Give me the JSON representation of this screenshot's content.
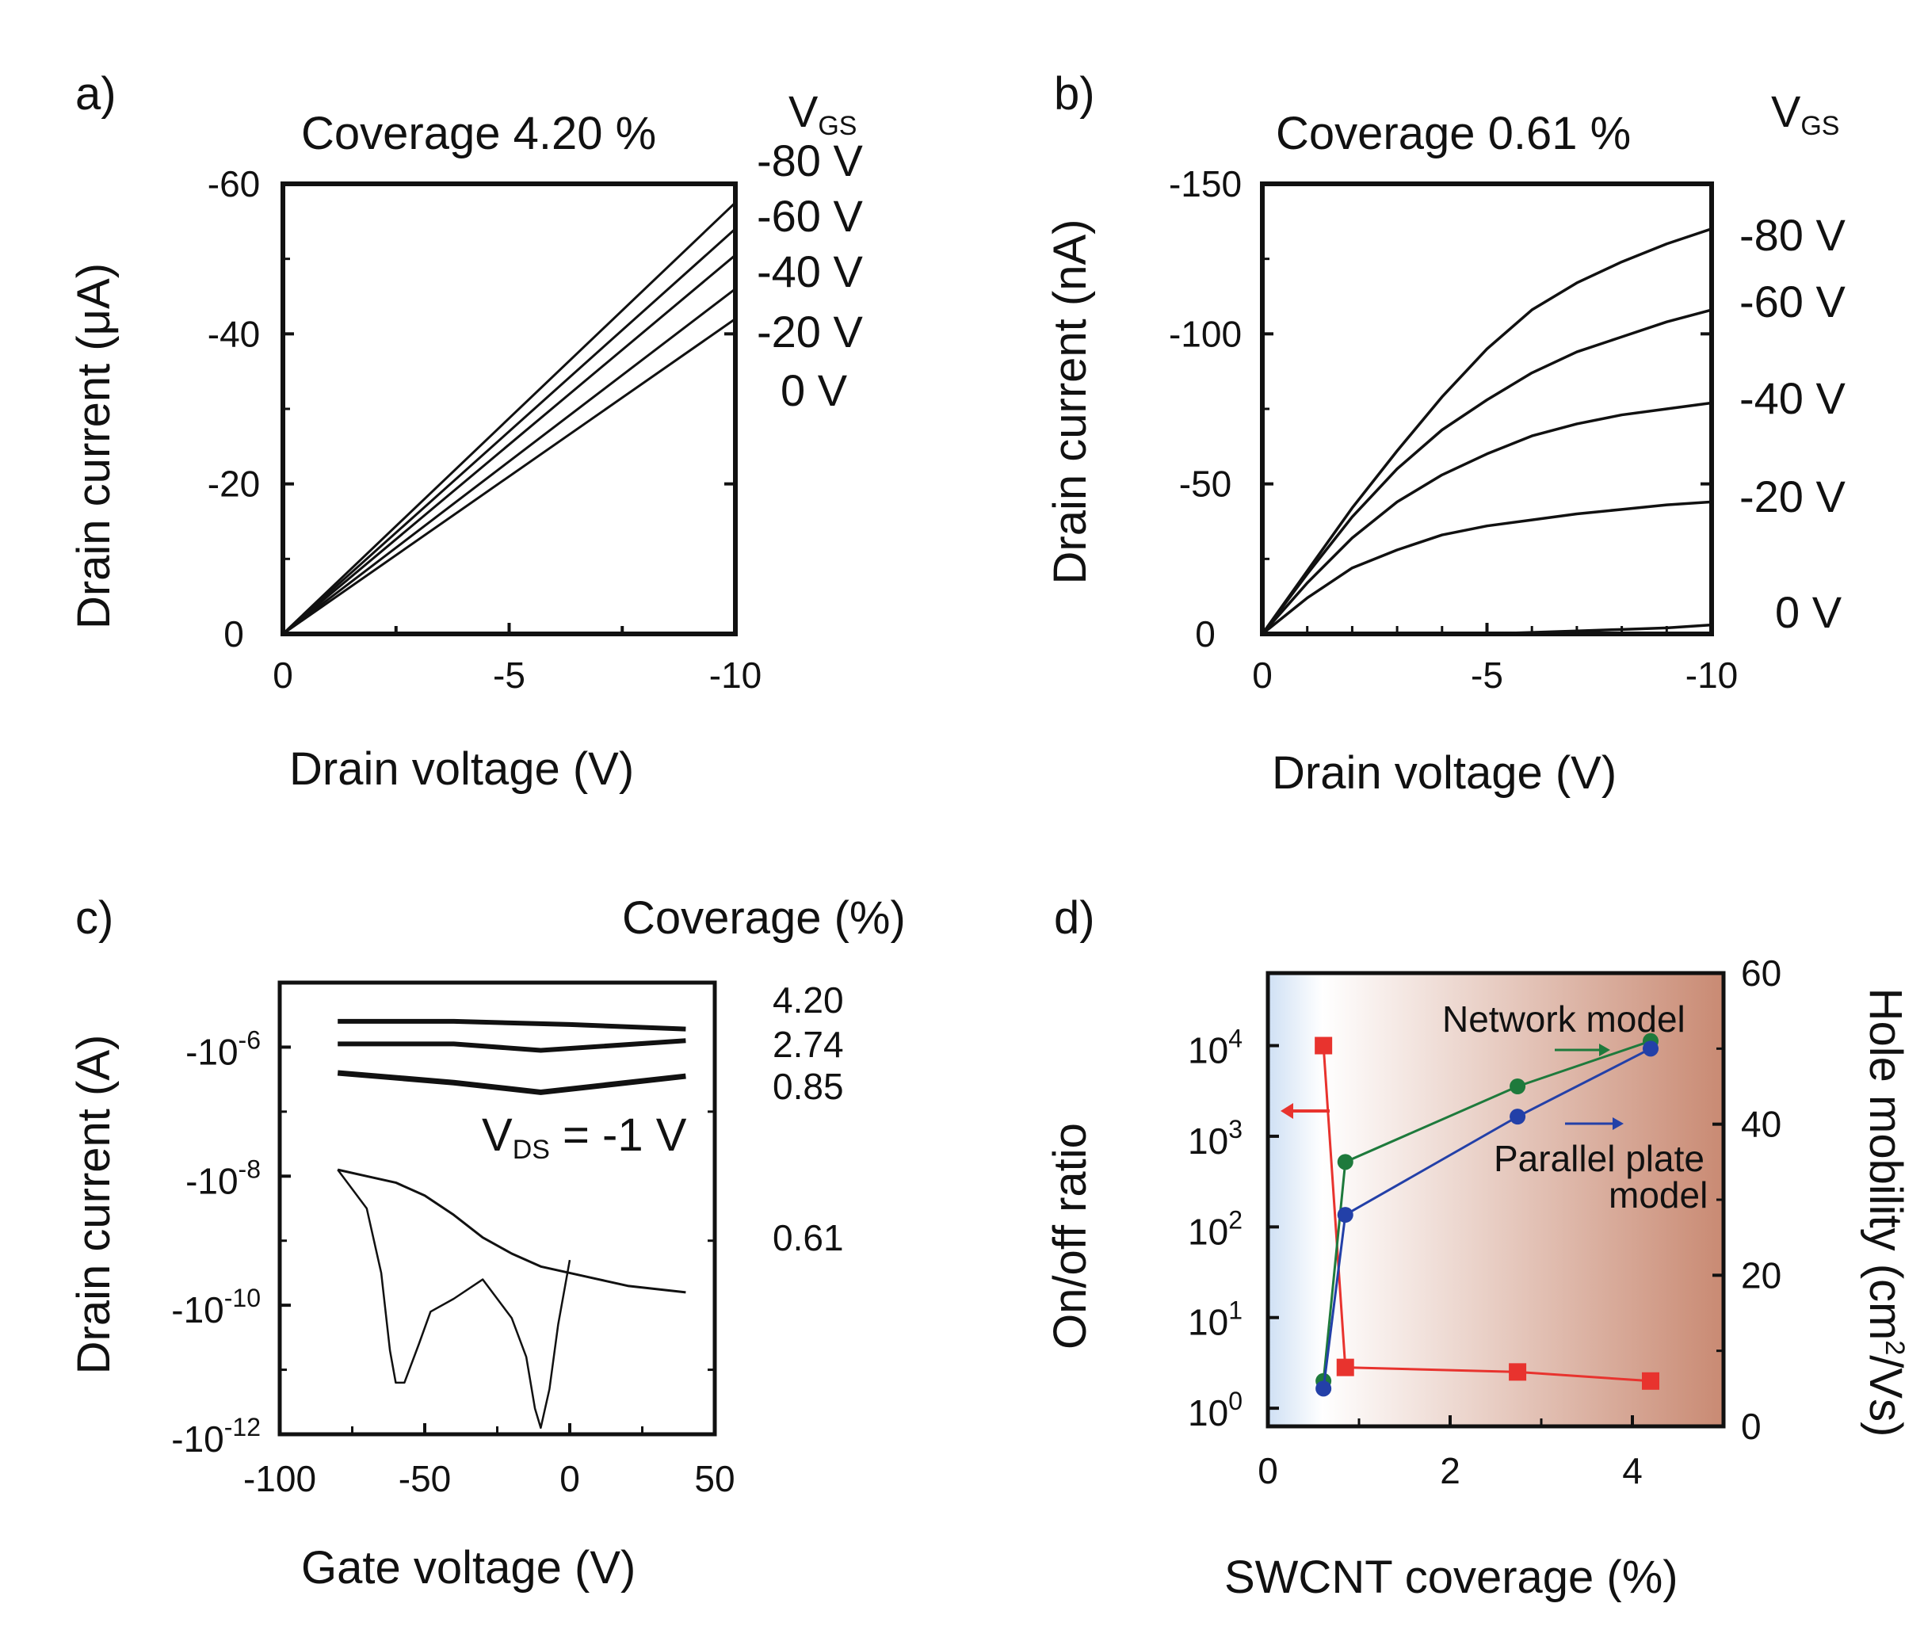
{
  "chart_data": [
    {
      "panel": "a)",
      "type": "line",
      "title": "Coverage 4.20 %",
      "xlabel": "Drain voltage (V)",
      "ylabel": "Drain current (μA)",
      "legend_header": "V",
      "legend_header_sub": "GS",
      "xlim": [
        0,
        -10
      ],
      "ylim": [
        0,
        -60
      ],
      "xticks": [
        "0",
        "-5",
        "-10"
      ],
      "yticks": [
        "-60",
        "-40",
        "-20",
        "0"
      ],
      "series": [
        {
          "name": "-80 V",
          "x": [
            0,
            -10
          ],
          "y": [
            0,
            -57.5
          ]
        },
        {
          "name": "-60 V",
          "x": [
            0,
            -10
          ],
          "y": [
            0,
            -54
          ]
        },
        {
          "name": "-40 V",
          "x": [
            0,
            -10
          ],
          "y": [
            0,
            -50.5
          ]
        },
        {
          "name": "-20 V",
          "x": [
            0,
            -10
          ],
          "y": [
            0,
            -46
          ]
        },
        {
          "name": "0 V",
          "x": [
            0,
            -10
          ],
          "y": [
            0,
            -42
          ]
        }
      ]
    },
    {
      "panel": "b)",
      "type": "line",
      "title": "Coverage 0.61 %",
      "xlabel": "Drain voltage (V)",
      "ylabel": "Drain current (nA)",
      "legend_header": "V",
      "legend_header_sub": "GS",
      "xlim": [
        0,
        -10
      ],
      "ylim": [
        0,
        -150
      ],
      "xticks": [
        "0",
        "-5",
        "-10"
      ],
      "yticks": [
        "-150",
        "-100",
        "-50",
        "0"
      ],
      "series": [
        {
          "name": "-80 V",
          "x": [
            0,
            -1,
            -2,
            -3,
            -4,
            -5,
            -6,
            -7,
            -8,
            -9,
            -10
          ],
          "y": [
            0,
            -21,
            -42,
            -61,
            -79,
            -95,
            -108,
            -117,
            -124,
            -130,
            -135
          ]
        },
        {
          "name": "-60 V",
          "x": [
            0,
            -1,
            -2,
            -3,
            -4,
            -5,
            -6,
            -7,
            -8,
            -9,
            -10
          ],
          "y": [
            0,
            -20,
            -39,
            -55,
            -68,
            -78,
            -87,
            -94,
            -99,
            -104,
            -108
          ]
        },
        {
          "name": "-40 V",
          "x": [
            0,
            -1,
            -2,
            -3,
            -4,
            -5,
            -6,
            -7,
            -8,
            -9,
            -10
          ],
          "y": [
            0,
            -17,
            -32,
            -44,
            -53,
            -60,
            -66,
            -70,
            -73,
            -75,
            -77
          ]
        },
        {
          "name": "-20 V",
          "x": [
            0,
            -1,
            -2,
            -3,
            -4,
            -5,
            -6,
            -7,
            -8,
            -9,
            -10
          ],
          "y": [
            0,
            -12,
            -22,
            -28,
            -33,
            -36,
            -38,
            -40,
            -41.5,
            -43,
            -44
          ]
        },
        {
          "name": "0 V",
          "x": [
            -4,
            -5,
            -6,
            -7,
            -8,
            -9,
            -10
          ],
          "y": [
            0,
            0,
            -0.5,
            -1,
            -1.5,
            -2,
            -3
          ]
        }
      ]
    },
    {
      "panel": "c)",
      "type": "line",
      "xlabel": "Gate voltage (V)",
      "ylabel": "Drain current (A)",
      "legend_header": "Coverage (%)",
      "annotation": "V",
      "annotation_sub": "DS",
      "annotation_rest": " = -1 V",
      "xlim": [
        -100,
        50
      ],
      "ylim_log10": [
        -12,
        -5
      ],
      "xticks": [
        "-100",
        "-50",
        "0",
        "50"
      ],
      "yticks": [
        {
          "base": "-10",
          "exp": "-6"
        },
        {
          "base": "-10",
          "exp": "-8"
        },
        {
          "base": "-10",
          "exp": "-10"
        },
        {
          "base": "-10",
          "exp": "-12"
        }
      ],
      "series": [
        {
          "name": "4.20",
          "x": [
            -80,
            -40,
            0,
            40
          ],
          "log10y": [
            -5.6,
            -5.6,
            -5.65,
            -5.72
          ]
        },
        {
          "name": "2.74",
          "x": [
            -80,
            -40,
            -10,
            40
          ],
          "log10y": [
            -5.95,
            -5.95,
            -6.05,
            -5.9
          ]
        },
        {
          "name": "0.85",
          "x": [
            -80,
            -40,
            -10,
            40
          ],
          "log10y": [
            -6.4,
            -6.55,
            -6.7,
            -6.45
          ]
        },
        {
          "name": "0.61",
          "x": [
            -80,
            -70,
            -60,
            -50,
            -40,
            -30,
            -20,
            -10,
            0,
            10,
            20,
            40
          ],
          "log10y": [
            -7.9,
            -8.0,
            -8.1,
            -8.3,
            -8.6,
            -8.95,
            -9.2,
            -9.4,
            -9.5,
            -9.6,
            -9.7,
            -9.8
          ]
        },
        {
          "name": "0.61 (reverse)",
          "x": [
            -80,
            -70,
            -65,
            -62,
            -60,
            -57,
            -52,
            -48,
            -40,
            -30,
            -20,
            -15,
            -12,
            -10,
            -7,
            -4,
            0
          ],
          "log10y": [
            -7.9,
            -8.5,
            -9.5,
            -10.7,
            -11.2,
            -11.2,
            -10.6,
            -10.1,
            -9.9,
            -9.6,
            -10.2,
            -10.8,
            -11.6,
            -11.9,
            -11.3,
            -10.3,
            -9.3
          ]
        }
      ]
    },
    {
      "panel": "d)",
      "type": "scatter",
      "xlabel": "SWCNT coverage (%)",
      "ylabel_left": "On/off ratio",
      "ylabel_right_pre": "Hole mobility (cm",
      "ylabel_right_sup": "2",
      "ylabel_right_post": "/Vs)",
      "xlim": [
        0,
        5
      ],
      "ylim_left_log10": [
        -0.2,
        4.8
      ],
      "ylim_right": [
        0,
        60
      ],
      "xticks": [
        "0",
        "2",
        "4"
      ],
      "yticks_left": [
        {
          "base": "10",
          "exp": "0"
        },
        {
          "base": "10",
          "exp": "1"
        },
        {
          "base": "10",
          "exp": "2"
        },
        {
          "base": "10",
          "exp": "3"
        },
        {
          "base": "10",
          "exp": "4"
        }
      ],
      "yticks_right": [
        "0",
        "20",
        "40",
        "60"
      ],
      "annotations": {
        "network": "Network model",
        "parallel_line1": "Parallel plate",
        "parallel_line2": "model"
      },
      "colors": {
        "onoff": "#e8332e",
        "network": "#1e7a3c",
        "parallel": "#2340a8",
        "bg_left": "#cfe0f4",
        "bg_right": "#c98a73"
      },
      "series": [
        {
          "name": "On/off ratio",
          "axis": "left",
          "x": [
            0.61,
            0.85,
            2.74,
            4.2
          ],
          "log10y": [
            4.0,
            0.45,
            0.4,
            0.3
          ]
        },
        {
          "name": "Network model",
          "axis": "right",
          "x": [
            0.61,
            0.85,
            2.74,
            4.2
          ],
          "y": [
            6,
            35,
            45,
            51
          ]
        },
        {
          "name": "Parallel plate model",
          "axis": "right",
          "x": [
            0.61,
            0.85,
            2.74,
            4.2
          ],
          "y": [
            5,
            28,
            41,
            50
          ]
        }
      ]
    }
  ]
}
